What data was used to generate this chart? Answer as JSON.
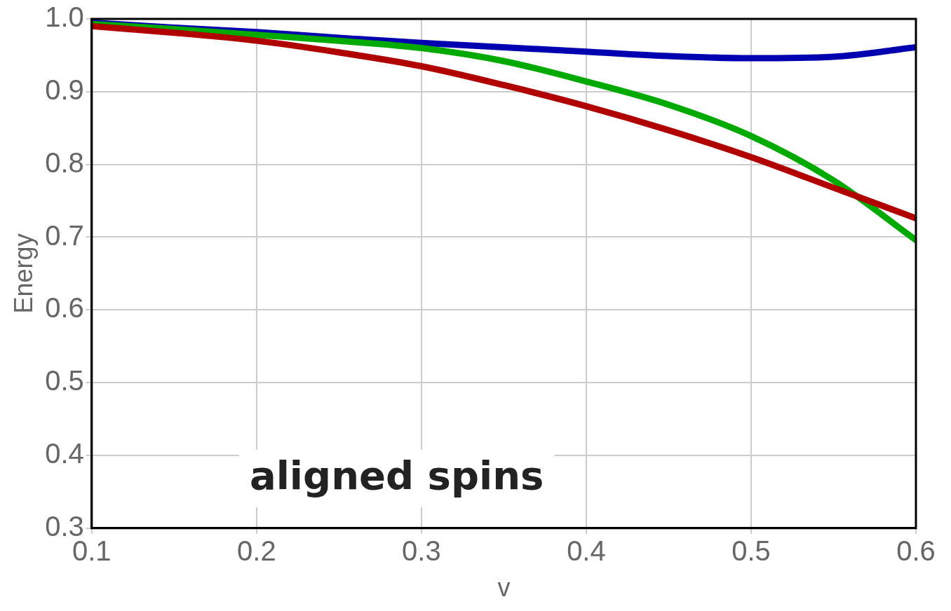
{
  "chart_data": {
    "type": "line",
    "xlabel": "v",
    "ylabel": "Energy",
    "annotations": [
      "aligned spins"
    ],
    "xlim": [
      0.1,
      0.6
    ],
    "xticks": [
      0.1,
      0.2,
      0.3,
      0.4,
      0.5,
      0.6
    ],
    "ylim": [
      0.3,
      1.0
    ],
    "yticks": [
      0.3,
      0.4,
      0.5,
      0.6,
      0.7,
      0.8,
      0.9,
      {
        "value": 1,
        "label": "1.0"
      }
    ],
    "grid": true,
    "legend": false,
    "marker": "none",
    "line_style": "solid",
    "x": [
      0.1,
      0.15,
      0.2,
      0.25,
      0.3,
      0.35,
      0.4,
      0.45,
      0.5,
      0.55,
      0.6
    ],
    "series": [
      {
        "color": "#b00000",
        "values": [
          0.99,
          0.981,
          0.97,
          0.954,
          0.935,
          0.909,
          0.88,
          0.847,
          0.81,
          0.768,
          0.726
        ]
      },
      {
        "color": "#00aa00",
        "values": [
          0.993,
          0.986,
          0.978,
          0.97,
          0.96,
          0.942,
          0.914,
          0.882,
          0.839,
          0.778,
          0.696
        ]
      },
      {
        "color": "#0000b0",
        "values": [
          0.995,
          0.988,
          0.982,
          0.974,
          0.967,
          0.961,
          0.955,
          0.949,
          0.946,
          0.948,
          0.961
        ]
      }
    ]
  }
}
